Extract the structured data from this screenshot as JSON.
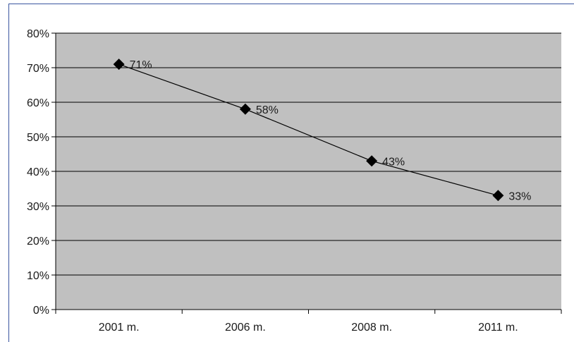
{
  "chart_data": {
    "type": "line",
    "title": "",
    "xlabel": "",
    "ylabel": "",
    "categories": [
      "2001 m.",
      "2006 m.",
      "2008 m.",
      "2011 m."
    ],
    "series": [
      {
        "values": [
          71,
          58,
          43,
          33
        ],
        "labels": [
          "71%",
          "58%",
          "43%",
          "33%"
        ],
        "marker": "diamond",
        "color": "#000000"
      }
    ],
    "ylim": [
      0,
      80
    ],
    "yticks": [
      0,
      10,
      20,
      30,
      40,
      50,
      60,
      70,
      80
    ],
    "ytick_labels": [
      "0%",
      "10%",
      "20%",
      "30%",
      "40%",
      "50%",
      "60%",
      "70%",
      "80%"
    ],
    "grid": true,
    "legend": "none",
    "plot_background": "#c0c0c0",
    "gridline_color": "#000000",
    "frame_color": "#3a55a0"
  }
}
